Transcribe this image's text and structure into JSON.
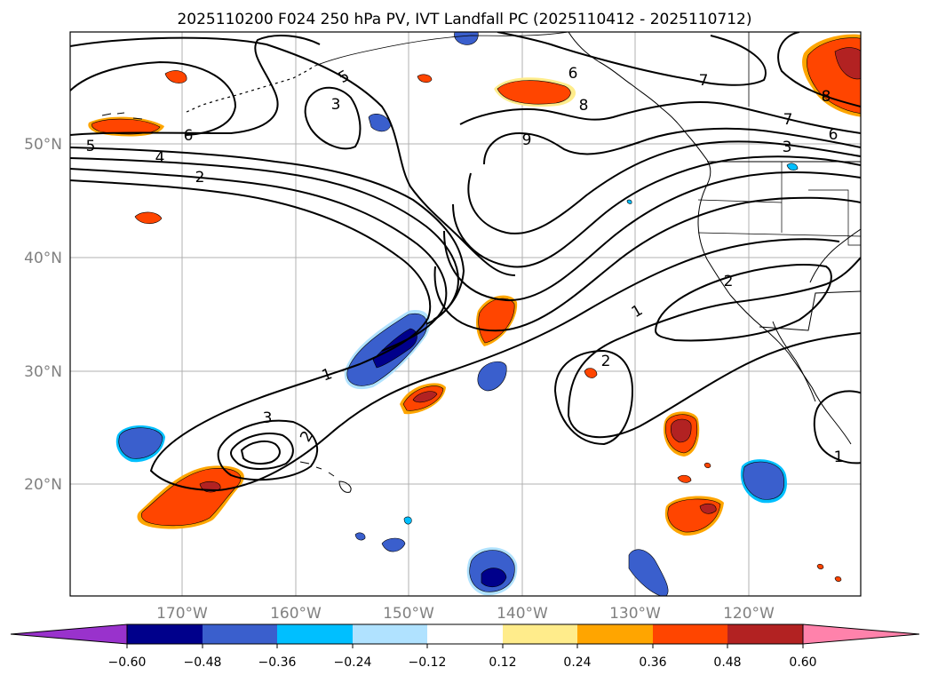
{
  "title": "2025110200 F024 250 hPa PV, IVT Landfall PC (2025110412 - 2025110712)",
  "map": {
    "lat_labels": [
      "50°N",
      "40°N",
      "30°N",
      "20°N"
    ],
    "lon_labels": [
      "170°W",
      "160°W",
      "150°W",
      "140°W",
      "130°W",
      "120°W"
    ],
    "contour_labels": [
      "5",
      "3",
      "6",
      "7",
      "8",
      "6",
      "4",
      "2",
      "9",
      "8",
      "7",
      "6",
      "3",
      "1",
      "2",
      "1",
      "3",
      "2",
      "2",
      "1"
    ],
    "colors": {
      "ocean": "#ffffff",
      "grid": "#b0b0b0",
      "coast": "#000000",
      "contour": "#000000"
    }
  },
  "colorbar": {
    "ticks": [
      "−0.60",
      "−0.48",
      "−0.36",
      "−0.24",
      "−0.12",
      "0.12",
      "0.24",
      "0.36",
      "0.48",
      "0.60"
    ],
    "colors": [
      "#9932cc",
      "#00008b",
      "#3a5fcd",
      "#00bfff",
      "#b0e2ff",
      "#ffffff",
      "#ffec8b",
      "#ffa500",
      "#ff4500",
      "#b22222",
      "#ff82ab"
    ]
  }
}
